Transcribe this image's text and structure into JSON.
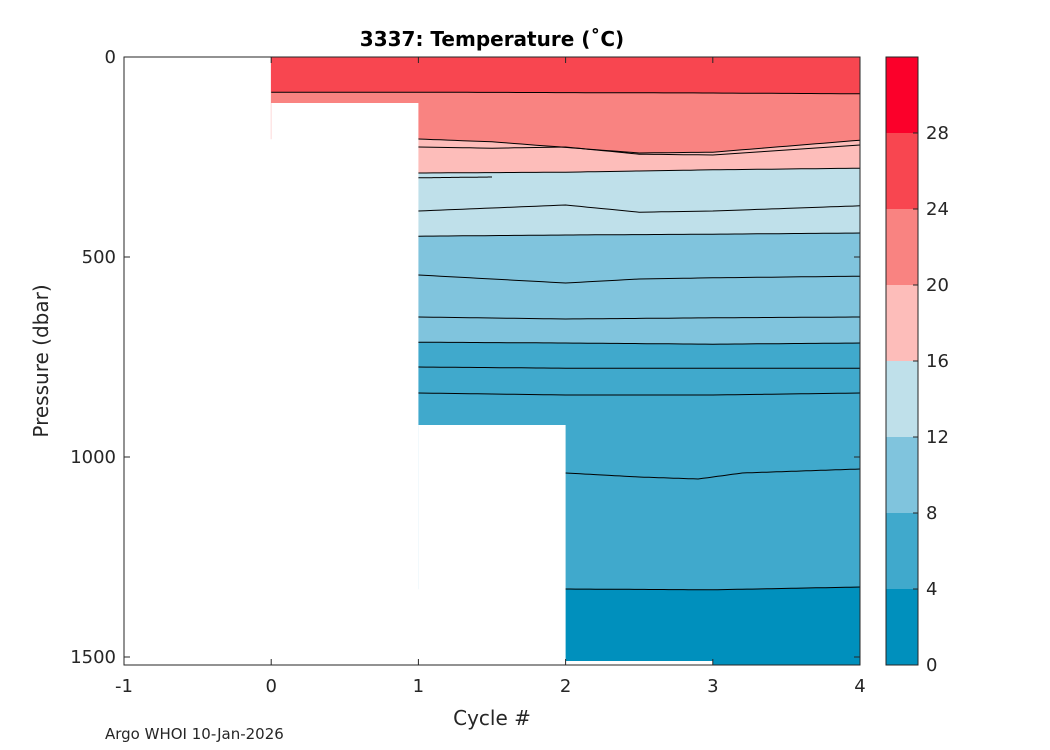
{
  "chart_data": {
    "type": "contour",
    "title": "3337:  Temperature (˚C)",
    "xlabel": "Cycle #",
    "ylabel": "Pressure (dbar)",
    "xlim": [
      -1,
      4
    ],
    "ylim": [
      0,
      1520
    ],
    "y_reversed": true,
    "x_ticks": [
      -1,
      0,
      1,
      2,
      3,
      4
    ],
    "x_tick_labels": [
      "-1",
      "0",
      "1",
      "2",
      "3",
      "4"
    ],
    "y_ticks": [
      0,
      500,
      1000,
      1500
    ],
    "y_tick_labels": [
      "0",
      "500",
      "1000",
      "1500"
    ],
    "colorbar": {
      "levels": [
        0,
        4,
        8,
        12,
        16,
        20,
        24,
        28,
        32
      ],
      "tick_values": [
        0,
        4,
        8,
        12,
        16,
        20,
        24,
        28
      ],
      "tick_labels": [
        "0",
        "4",
        "8",
        "12",
        "16",
        "20",
        "24",
        "28"
      ],
      "colors": [
        "#0090bd",
        "#40a9cc",
        "#80c4dd",
        "#bfe0ea",
        "#fdbdba",
        "#f98381",
        "#f84650",
        "#fb002a"
      ]
    },
    "profile_max_depth_dbar": [
      {
        "cycle_start": 0,
        "cycle_end": 1,
        "max_pressure": 115
      },
      {
        "cycle_start": 1,
        "cycle_end": 2,
        "max_pressure": 920
      },
      {
        "cycle_start": 2,
        "cycle_end": 3,
        "max_pressure": 1520
      },
      {
        "cycle_start": 3,
        "cycle_end": 4,
        "max_pressure": 1520
      }
    ],
    "temperature_bands": [
      {
        "tmin": 24,
        "tmax": 28,
        "x": [
          0,
          4
        ],
        "top": [
          0,
          0,
          0
        ],
        "bottom_x": [
          0,
          1,
          2,
          3,
          4
        ],
        "bottom": [
          88,
          88,
          89,
          90,
          92
        ]
      },
      {
        "tmin": 20,
        "tmax": 24,
        "x": [
          0,
          4
        ],
        "top_x": [
          0,
          1,
          2,
          3,
          4
        ],
        "top": [
          88,
          88,
          89,
          90,
          92
        ],
        "bottom_x": [
          1,
          1.5,
          2.5,
          3,
          4
        ],
        "bottom": [
          205,
          212,
          240,
          238,
          208
        ]
      },
      {
        "tmin": 16,
        "tmax": 20,
        "x": [
          1,
          4
        ],
        "top_x": [
          1,
          1.5,
          2.5,
          3,
          4
        ],
        "top": [
          205,
          212,
          240,
          238,
          208
        ],
        "bottom_x": [
          1,
          2,
          3,
          4
        ],
        "bottom": [
          290,
          288,
          282,
          278
        ]
      },
      {
        "tmin": 12,
        "tmax": 16,
        "x": [
          1,
          4
        ],
        "top_x": [
          1,
          2,
          3,
          4
        ],
        "top": [
          290,
          288,
          282,
          278
        ],
        "bottom_x": [
          1,
          2,
          3,
          4
        ],
        "bottom": [
          448,
          445,
          443,
          440
        ]
      },
      {
        "tmin": 8,
        "tmax": 12,
        "x": [
          1,
          4
        ],
        "top_x": [
          1,
          2,
          3,
          4
        ],
        "top": [
          448,
          445,
          443,
          440
        ],
        "bottom_x": [
          1,
          2,
          3,
          4
        ],
        "bottom": [
          713,
          715,
          718,
          715
        ]
      },
      {
        "tmin": 4,
        "tmax": 8,
        "x": [
          1,
          4
        ],
        "top_x": [
          1,
          2,
          3,
          4
        ],
        "top": [
          713,
          715,
          718,
          715
        ],
        "bottom_x": [
          2,
          3,
          4
        ],
        "bottom": [
          1330,
          1332,
          1325
        ]
      },
      {
        "tmin": 0,
        "tmax": 4,
        "x": [
          2,
          4
        ],
        "top_x": [
          2,
          3,
          4
        ],
        "top": [
          1330,
          1332,
          1325
        ],
        "bottom_x": [
          2,
          4
        ],
        "bottom": [
          1520,
          1520
        ]
      }
    ],
    "contour_lines": [
      {
        "x": [
          0,
          1,
          2,
          3,
          4
        ],
        "p": [
          88,
          88,
          89,
          90,
          92
        ]
      },
      {
        "x": [
          1,
          1.5,
          2.5,
          3,
          4
        ],
        "p": [
          205,
          212,
          240,
          238,
          208
        ]
      },
      {
        "x": [
          1,
          1.5,
          2,
          2.5,
          3,
          4
        ],
        "p": [
          225,
          228,
          225,
          243,
          245,
          220
        ]
      },
      {
        "x": [
          1,
          2,
          3,
          4
        ],
        "p": [
          290,
          288,
          282,
          278
        ]
      },
      {
        "x": [
          1,
          1.5
        ],
        "p": [
          302,
          300
        ]
      },
      {
        "x": [
          1,
          2,
          2.5,
          3,
          4
        ],
        "p": [
          385,
          370,
          388,
          385,
          372
        ]
      },
      {
        "x": [
          1,
          2,
          3,
          4
        ],
        "p": [
          448,
          445,
          443,
          440
        ]
      },
      {
        "x": [
          1,
          2,
          2.5,
          3,
          4
        ],
        "p": [
          545,
          565,
          555,
          552,
          548
        ]
      },
      {
        "x": [
          1,
          2,
          3,
          4
        ],
        "p": [
          650,
          655,
          652,
          650
        ]
      },
      {
        "x": [
          1,
          2,
          3,
          4
        ],
        "p": [
          713,
          715,
          718,
          715
        ]
      },
      {
        "x": [
          1,
          2,
          3,
          4
        ],
        "p": [
          775,
          778,
          778,
          778
        ]
      },
      {
        "x": [
          1,
          2,
          3,
          4
        ],
        "p": [
          840,
          845,
          845,
          840
        ]
      },
      {
        "x": [
          2,
          2.5,
          2.9,
          3.2,
          4
        ],
        "p": [
          1040,
          1050,
          1055,
          1040,
          1030
        ]
      },
      {
        "x": [
          2,
          3,
          4
        ],
        "p": [
          1330,
          1332,
          1325
        ]
      }
    ]
  },
  "footer": {
    "note": "Argo WHOI 10-Jan-2026"
  }
}
